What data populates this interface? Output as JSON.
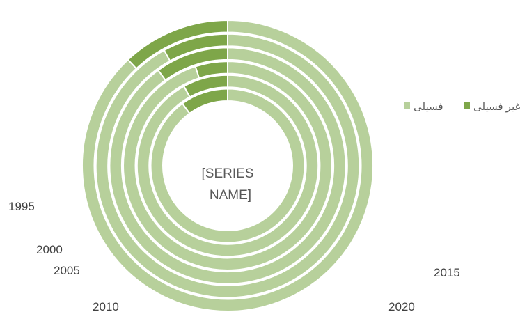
{
  "colors": {
    "fossil": "#b7d09b",
    "non_fossil": "#7ea649",
    "background": "#ffffff",
    "label_text": "#404040",
    "center_text": "#595959"
  },
  "chart_data": {
    "type": "doughnut",
    "center_label_lines": [
      "[SERIES",
      "NAME]"
    ],
    "rings_inner_to_outer": [
      "1995",
      "2000",
      "2005",
      "2010",
      "2015",
      "2020"
    ],
    "series": [
      {
        "name": "فسیلی",
        "values": [
          0.9,
          0.92,
          0.95,
          0.9,
          0.92,
          0.88
        ]
      },
      {
        "name": "غیر فسیلی",
        "values": [
          0.1,
          0.08,
          0.05,
          0.1,
          0.08,
          0.12
        ]
      }
    ],
    "ring_labels": [
      "1995",
      "2000",
      "2005",
      "2010",
      "2015",
      "2020"
    ],
    "legend": {
      "position": "right",
      "entries": [
        "فسیلی",
        "غیر فسیلی"
      ]
    }
  }
}
